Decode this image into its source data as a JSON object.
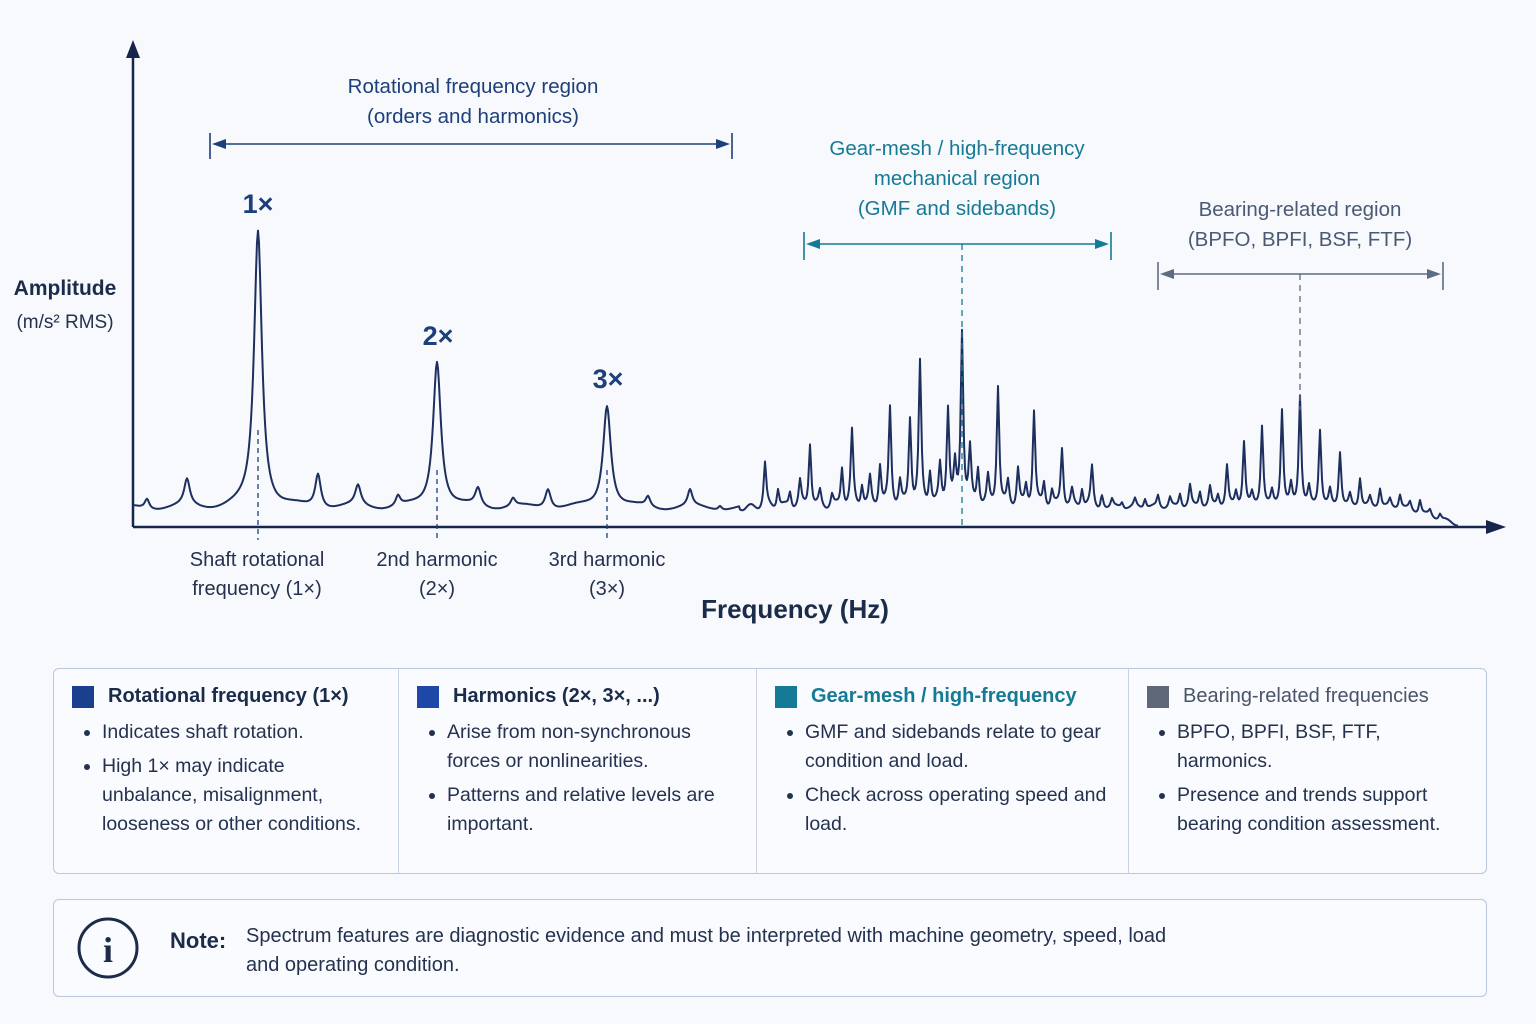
{
  "chart_data": {
    "type": "line",
    "title": "",
    "xlabel": "Frequency (Hz)",
    "ylabel": "Amplitude",
    "ylabel_unit": "(m/s² RMS)",
    "peak_labels": [
      {
        "label": "1×",
        "sub1": "Shaft rotational",
        "sub2": "frequency (1×)"
      },
      {
        "label": "2×",
        "sub1": "2nd harmonic",
        "sub2": "(2×)"
      },
      {
        "label": "3×",
        "sub1": "3rd harmonic",
        "sub2": "(3×)"
      }
    ],
    "regions": [
      {
        "lines": [
          "Rotational frequency region",
          "(orders and harmonics)"
        ],
        "color": "#1d3f7a"
      },
      {
        "lines": [
          "Gear-mesh / high-frequency",
          "mechanical region",
          "(GMF and sidebands)"
        ],
        "color": "#157a96"
      },
      {
        "lines": [
          "Bearing-related region",
          "(BPFO, BPFI, BSF, FTF)"
        ],
        "color": "#4a5a75"
      }
    ],
    "line_color": "#1d2f5e",
    "axis_color": "#16254a"
  },
  "legend": [
    {
      "title": "Rotational frequency (1×)",
      "color": "#1b3f8f",
      "items": [
        "Indicates shaft rotation.",
        "High 1× may indicate unbalance, misalignment, looseness or other conditions."
      ]
    },
    {
      "title": "Harmonics (2×, 3×, ...)",
      "color": "#1e47a8",
      "items": [
        "Arise from non-synchronous forces or nonlinearities.",
        "Patterns and relative levels are important."
      ]
    },
    {
      "title": "Gear-mesh / high-frequency",
      "color": "#157a96",
      "items": [
        "GMF and sidebands relate to gear condition and load.",
        "Check across operating speed and load."
      ]
    },
    {
      "title": "Bearing-related frequencies",
      "color": "#5f6878",
      "items": [
        "BPFO, BPFI, BSF, FTF, harmonics.",
        "Presence and trends support bearing condition assessment."
      ]
    }
  ],
  "note": {
    "label": "Note:",
    "text": "Spectrum features are diagnostic evidence and must be interpreted with machine geometry, speed, load and operating condition."
  }
}
